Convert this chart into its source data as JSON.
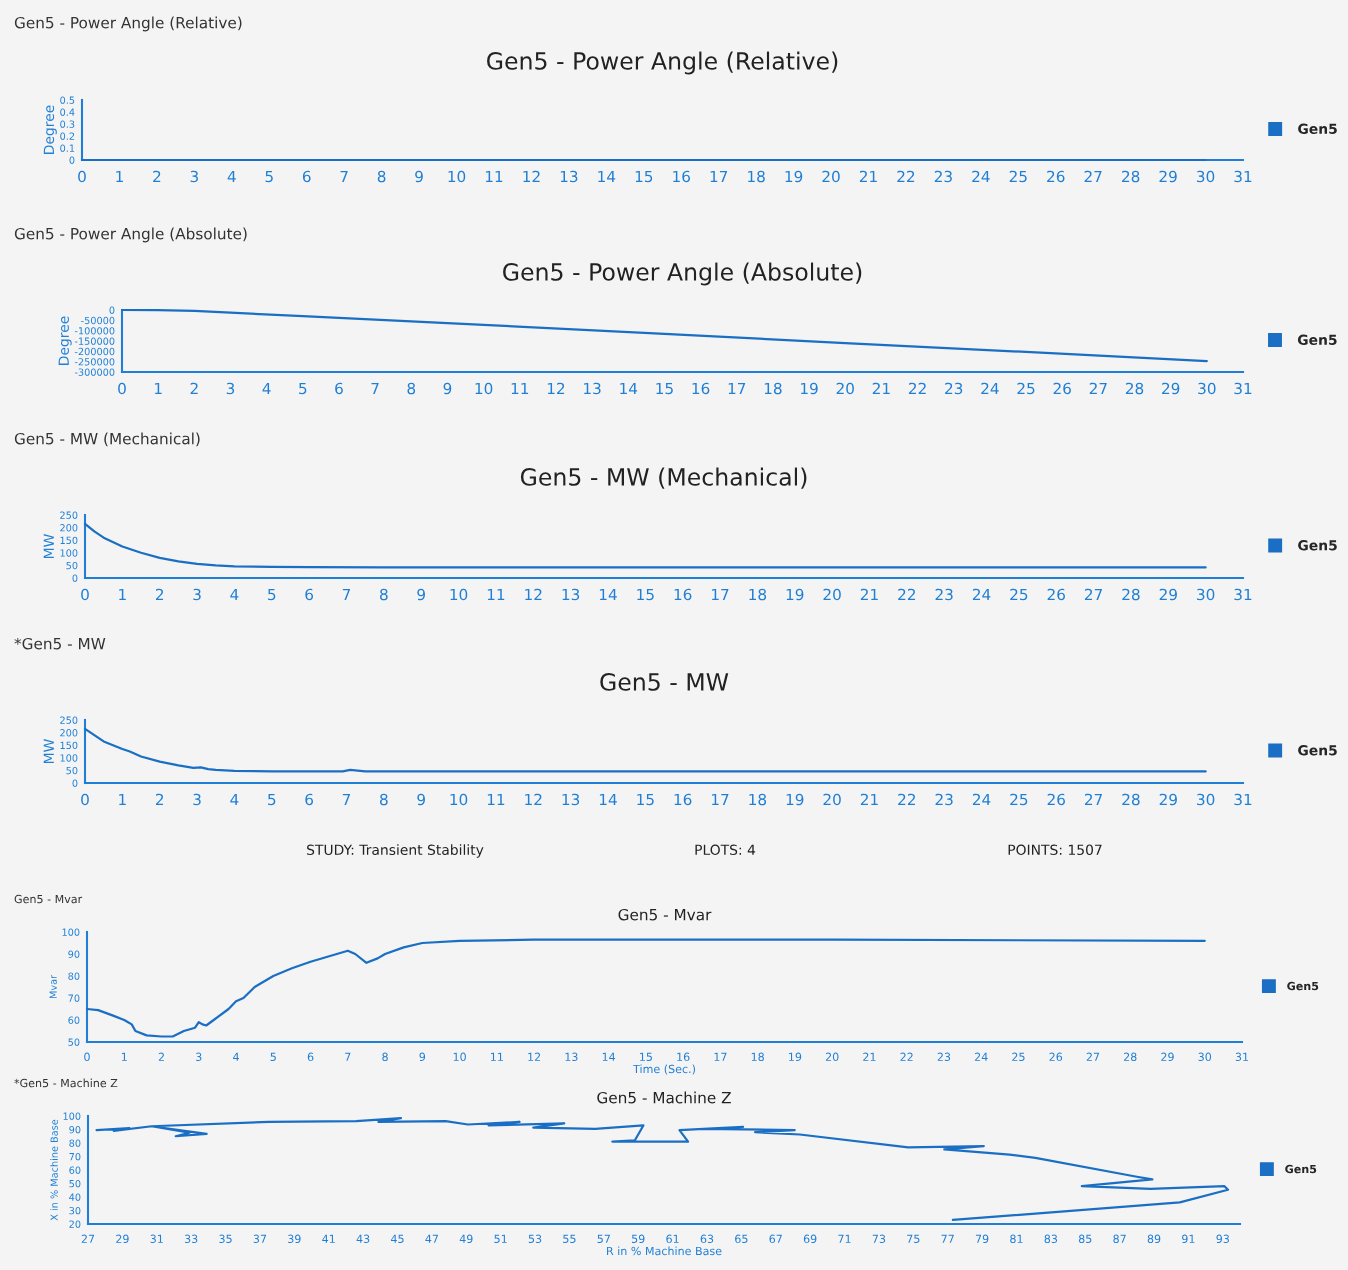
{
  "chart_data": [
    {
      "type": "line",
      "subtitle": "Gen5 - Power Angle (Relative)",
      "title": "Gen5 - Power Angle (Relative)",
      "ylabel": "Degree",
      "xlim": [
        0,
        31
      ],
      "xticks": [
        0,
        1,
        2,
        3,
        4,
        5,
        6,
        7,
        8,
        9,
        10,
        11,
        12,
        13,
        14,
        15,
        16,
        17,
        18,
        19,
        20,
        21,
        22,
        23,
        24,
        25,
        26,
        27,
        28,
        29,
        30,
        31
      ],
      "ylim": [
        0,
        0.5
      ],
      "yticks": [
        0,
        0.1,
        0.2,
        0.3,
        0.4,
        0.5
      ],
      "grid": false,
      "legend": "right",
      "series": [
        {
          "name": "Gen5",
          "color": "#1a6fc4",
          "x": [
            0,
            30
          ],
          "values": [
            0,
            0
          ]
        }
      ]
    },
    {
      "type": "line",
      "subtitle": "Gen5 - Power Angle (Absolute)",
      "title": "Gen5 - Power Angle (Absolute)",
      "ylabel": "Degree",
      "xlim": [
        0,
        31
      ],
      "xticks": [
        0,
        1,
        2,
        3,
        4,
        5,
        6,
        7,
        8,
        9,
        10,
        11,
        12,
        13,
        14,
        15,
        16,
        17,
        18,
        19,
        20,
        21,
        22,
        23,
        24,
        25,
        26,
        27,
        28,
        29,
        30,
        31
      ],
      "ylim": [
        -300000,
        0
      ],
      "yticks": [
        0,
        -50000,
        -100000,
        -150000,
        -200000,
        -250000,
        -300000
      ],
      "grid": false,
      "legend": "right",
      "series": [
        {
          "name": "Gen5",
          "color": "#1a6fc4",
          "x": [
            0,
            1,
            2,
            3,
            5,
            10,
            15,
            20,
            25,
            30
          ],
          "values": [
            0,
            -1000,
            -4000,
            -13000,
            -30000,
            -72000,
            -115000,
            -160000,
            -203000,
            -247000
          ]
        }
      ]
    },
    {
      "type": "line",
      "subtitle": "Gen5 - MW (Mechanical)",
      "title": "Gen5 - MW (Mechanical)",
      "ylabel": "MW",
      "xlim": [
        0,
        31
      ],
      "xticks": [
        0,
        1,
        2,
        3,
        4,
        5,
        6,
        7,
        8,
        9,
        10,
        11,
        12,
        13,
        14,
        15,
        16,
        17,
        18,
        19,
        20,
        21,
        22,
        23,
        24,
        25,
        26,
        27,
        28,
        29,
        30,
        31
      ],
      "ylim": [
        0,
        250
      ],
      "yticks": [
        0,
        50,
        100,
        150,
        200,
        250
      ],
      "grid": false,
      "legend": "right",
      "series": [
        {
          "name": "Gen5",
          "color": "#1a6fc4",
          "x": [
            0,
            0.25,
            0.5,
            1,
            1.5,
            2,
            2.5,
            3,
            3.5,
            4,
            5,
            6,
            8,
            10,
            15,
            20,
            30
          ],
          "values": [
            215,
            185,
            160,
            125,
            100,
            80,
            66,
            56,
            50,
            46,
            44,
            43,
            42,
            42,
            42,
            42,
            42
          ]
        }
      ]
    },
    {
      "type": "line",
      "subtitle": "*Gen5 - MW",
      "title": "Gen5 - MW",
      "ylabel": "MW",
      "xlim": [
        0,
        31
      ],
      "xticks": [
        0,
        1,
        2,
        3,
        4,
        5,
        6,
        7,
        8,
        9,
        10,
        11,
        12,
        13,
        14,
        15,
        16,
        17,
        18,
        19,
        20,
        21,
        22,
        23,
        24,
        25,
        26,
        27,
        28,
        29,
        30,
        31
      ],
      "ylim": [
        0,
        250
      ],
      "yticks": [
        0,
        50,
        100,
        150,
        200,
        250
      ],
      "grid": false,
      "legend": "right",
      "annotations": [
        "STUDY: Transient Stability",
        "PLOTS: 4",
        "POINTS: 1507"
      ],
      "series": [
        {
          "name": "Gen5",
          "color": "#1a6fc4",
          "x": [
            0,
            0.25,
            0.5,
            1,
            1.2,
            1.5,
            2,
            2.5,
            2.9,
            3.1,
            3.3,
            3.5,
            4,
            5,
            6,
            6.9,
            7.1,
            7.5,
            8,
            10,
            15,
            20,
            30
          ],
          "values": [
            215,
            190,
            165,
            135,
            125,
            105,
            85,
            70,
            60,
            62,
            55,
            52,
            48,
            46,
            46,
            46,
            52,
            46,
            46,
            46,
            46,
            46,
            46
          ]
        }
      ]
    },
    {
      "type": "line",
      "subtitle": "Gen5 - Mvar",
      "title": "Gen5 - Mvar",
      "xlabel": "Time (Sec.)",
      "ylabel": "Mvar",
      "xlim": [
        0,
        31
      ],
      "xticks": [
        0,
        1,
        2,
        3,
        4,
        5,
        6,
        7,
        8,
        9,
        10,
        11,
        12,
        13,
        14,
        15,
        16,
        17,
        18,
        19,
        20,
        21,
        22,
        23,
        24,
        25,
        26,
        27,
        28,
        29,
        30,
        31
      ],
      "ylim": [
        50,
        100
      ],
      "yticks": [
        50,
        60,
        70,
        80,
        90,
        100
      ],
      "grid": false,
      "legend": "right",
      "series": [
        {
          "name": "Gen5",
          "color": "#1a6fc4",
          "x": [
            0,
            0.3,
            0.7,
            1,
            1.2,
            1.3,
            1.6,
            2,
            2.3,
            2.6,
            2.9,
            3,
            3.1,
            3.2,
            3.4,
            3.8,
            4,
            4.2,
            4.5,
            5,
            5.5,
            6,
            6.5,
            7,
            7.2,
            7.5,
            7.8,
            8,
            8.5,
            9,
            10,
            12,
            20,
            30
          ],
          "values": [
            65,
            64.5,
            62,
            60,
            58,
            55,
            53,
            52.5,
            52.5,
            55,
            56.5,
            59,
            58,
            57.5,
            60,
            65,
            68.5,
            70,
            75,
            80,
            83.5,
            86.5,
            89,
            91.5,
            90,
            86,
            88,
            90,
            93,
            95,
            96,
            96.5,
            96.5,
            96
          ]
        }
      ]
    },
    {
      "type": "line",
      "subtitle": "*Gen5 - Machine Z",
      "title": "Gen5 - Machine Z",
      "xlabel": "R in % Machine Base",
      "ylabel": "X in % Machine Base",
      "xlim": [
        27,
        94
      ],
      "xticks": [
        27,
        29,
        31,
        33,
        35,
        37,
        39,
        41,
        43,
        45,
        47,
        49,
        51,
        53,
        55,
        57,
        59,
        61,
        63,
        65,
        67,
        69,
        71,
        73,
        75,
        77,
        79,
        81,
        83,
        85,
        87,
        89,
        91,
        93
      ],
      "ylim": [
        20,
        100
      ],
      "yticks": [
        20,
        30,
        40,
        50,
        60,
        70,
        80,
        90,
        100
      ],
      "grid": false,
      "legend": "right",
      "series": [
        {
          "name": "Gen5",
          "color": "#1a6fc4",
          "x": [
            27.5,
            29.4,
            28.5,
            30.7,
            33.9,
            32.1,
            32.9,
            30.7,
            37.5,
            42.6,
            45.2,
            43.9,
            47.8,
            49.1,
            52.1,
            50.3,
            54.7,
            52.9,
            56.5,
            59.3,
            58.8,
            57.5,
            61.9,
            61.4,
            62.8,
            65.1,
            62.8,
            68.1,
            65.8,
            68.4,
            74.7,
            79.1,
            76.8,
            80.6,
            82.1,
            88,
            88.9,
            84.8,
            88.8,
            93.1,
            93.3,
            90.5,
            77.3
          ],
          "values": [
            89.5,
            91,
            89,
            92.4,
            86.7,
            85,
            87.6,
            92.4,
            95.6,
            96.2,
            98.4,
            95.6,
            96.2,
            93.7,
            95.6,
            93,
            94.6,
            91.4,
            90.5,
            93,
            81.9,
            81,
            81,
            89.5,
            90.5,
            92,
            90.5,
            89.5,
            88,
            86.3,
            76.8,
            77.7,
            75.2,
            71.4,
            69,
            55,
            53,
            48,
            46,
            48,
            45.4,
            36,
            23
          ]
        }
      ]
    }
  ]
}
